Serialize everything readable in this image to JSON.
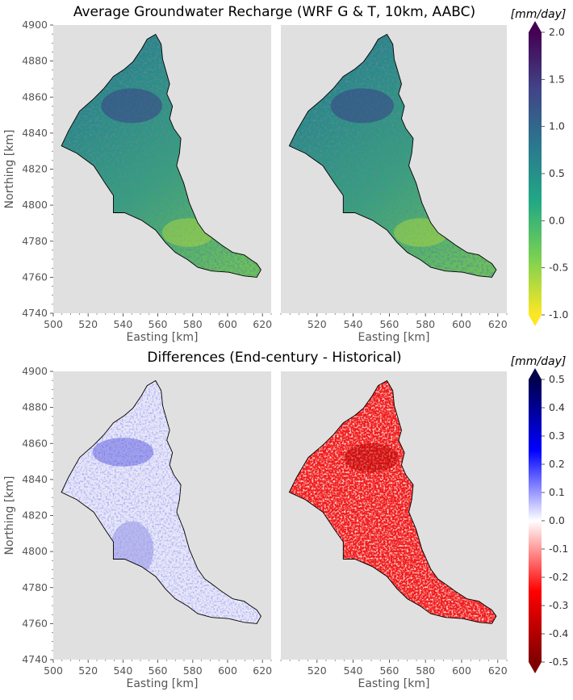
{
  "figure": {
    "top_title": "Average Groundwater Recharge (WRF G & T, 10km, AABC)",
    "bottom_title": "Differences (End-century - Historical)",
    "colors": {
      "panel_bg": "#e0e0e0",
      "outline": "#000000"
    }
  },
  "chart_data": [
    {
      "type": "heatmap",
      "panel": "top-left",
      "xlabel": "Easting [km]",
      "ylabel": "Northing [km]",
      "xlim": [
        500,
        625
      ],
      "ylim": [
        4740,
        4900
      ],
      "x_ticks": [
        "500",
        "520",
        "540",
        "560",
        "580",
        "600",
        "620"
      ],
      "y_ticks": [
        "4740",
        "4760",
        "4780",
        "4800",
        "4820",
        "4840",
        "4860",
        "4880",
        "4900"
      ]
    },
    {
      "type": "heatmap",
      "panel": "top-right",
      "xlabel": "Easting [km]",
      "xlim": [
        500,
        625
      ],
      "ylim": [
        4740,
        4900
      ],
      "x_ticks": [
        "520",
        "540",
        "560",
        "580",
        "600",
        "620"
      ]
    },
    {
      "type": "heatmap",
      "panel": "bottom-left",
      "xlabel": "Easting [km]",
      "ylabel": "Northing [km]",
      "xlim": [
        500,
        625
      ],
      "ylim": [
        4740,
        4900
      ],
      "x_ticks": [
        "500",
        "520",
        "540",
        "560",
        "580",
        "600",
        "620"
      ],
      "y_ticks": [
        "4740",
        "4760",
        "4780",
        "4800",
        "4820",
        "4840",
        "4860",
        "4880",
        "4900"
      ]
    },
    {
      "type": "heatmap",
      "panel": "bottom-right",
      "xlabel": "Easting [km]",
      "xlim": [
        500,
        625
      ],
      "ylim": [
        4740,
        4900
      ],
      "x_ticks": [
        "520",
        "540",
        "560",
        "580",
        "600",
        "620"
      ]
    }
  ],
  "colorbars": [
    {
      "label": "[mm/day]",
      "colormap": "viridis_r",
      "ticks": [
        "2.0",
        "1.5",
        "1.0",
        "0.5",
        "0.0",
        "-0.5",
        "-1.0"
      ],
      "range": [
        -1.0,
        2.0
      ],
      "stops": [
        "#fde725",
        "#7ad151",
        "#22a884",
        "#2a788e",
        "#414487",
        "#440154"
      ]
    },
    {
      "label": "[mm/day]",
      "colormap": "seismic_r",
      "ticks": [
        "0.5",
        "0.4",
        "0.3",
        "0.2",
        "0.1",
        "0.0",
        "-0.1",
        "-0.2",
        "-0.3",
        "-0.4",
        "-0.5"
      ],
      "range": [
        -0.5,
        0.5
      ],
      "stops": [
        "#7f0000",
        "#ff0000",
        "#ffffff",
        "#0000ff",
        "#00004c"
      ]
    }
  ]
}
